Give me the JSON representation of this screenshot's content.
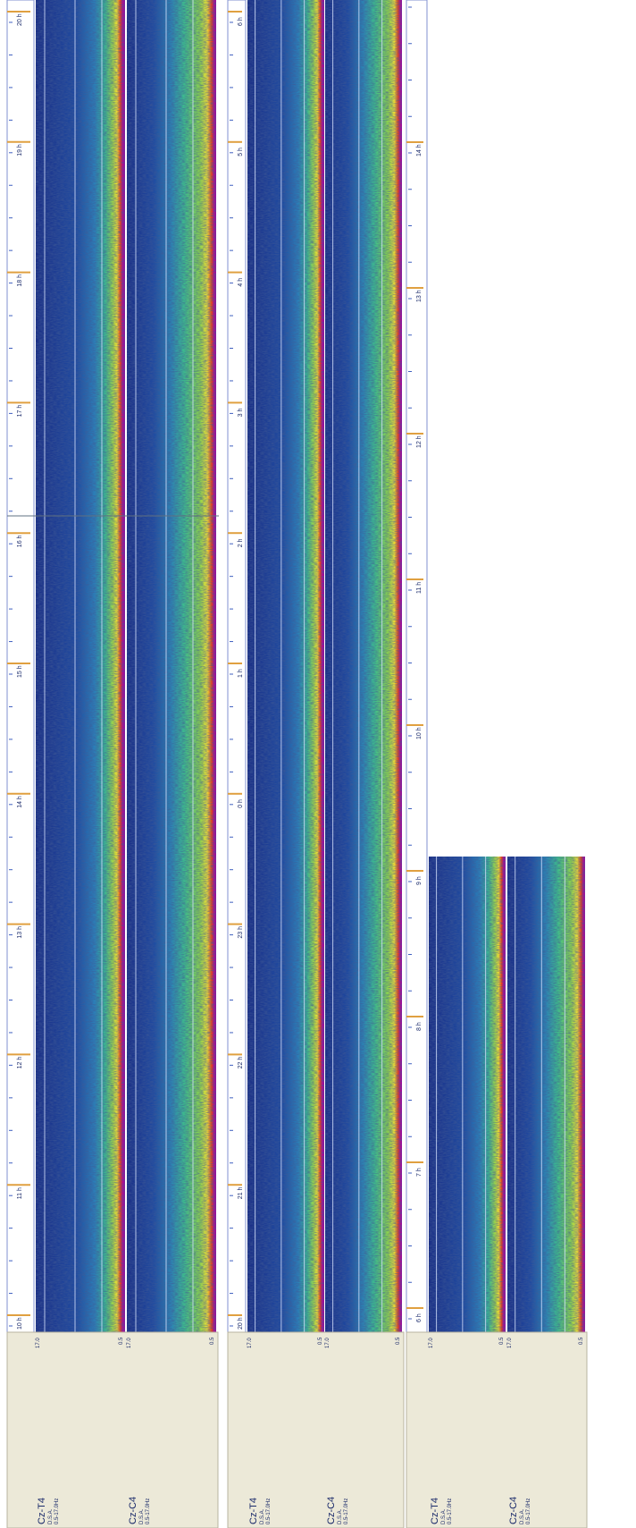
{
  "strips": [
    {
      "time_labels": [
        "10 h",
        "11 h",
        "12 h",
        "13 h",
        "14 h",
        "15 h",
        "16 h",
        "17 h",
        "18 h",
        "19 h",
        "20 h"
      ],
      "channels": [
        {
          "name": "Cz-T4",
          "mode": "D.S.A.",
          "band": "0.5-17.0Hz",
          "scale_max": "17.0",
          "scale_min": "0.5"
        },
        {
          "name": "Cz-C4",
          "mode": "D.S.A.",
          "band": "0.5-17.0Hz",
          "scale_max": "17.0",
          "scale_min": "0.5"
        }
      ]
    },
    {
      "time_labels": [
        "20 h",
        "21 h",
        "22 h",
        "23 h",
        "0 h",
        "1 h",
        "2 h",
        "3 h",
        "4 h",
        "5 h",
        "6 h"
      ],
      "channels": [
        {
          "name": "Cz-T4",
          "mode": "D.S.A.",
          "band": "0.5-17.0Hz",
          "scale_max": "17.0",
          "scale_min": "0.5"
        },
        {
          "name": "Cz-C4",
          "mode": "D.S.A.",
          "band": "0.5-17.0Hz",
          "scale_max": "17.0",
          "scale_min": "0.5"
        }
      ]
    },
    {
      "time_labels": [
        "6 h",
        "7 h",
        "8 h",
        "9 h",
        "10 h",
        "11 h",
        "12 h",
        "13 h",
        "14 h"
      ],
      "channels": [
        {
          "name": "Cz-T4",
          "mode": "D.S.A.",
          "band": "0.5-17.0Hz",
          "scale_max": "17.0",
          "scale_min": "0.5"
        },
        {
          "name": "Cz-C4",
          "mode": "D.S.A.",
          "band": "0.5-17.0Hz",
          "scale_max": "17.0",
          "scale_min": "0.5"
        }
      ]
    }
  ]
}
